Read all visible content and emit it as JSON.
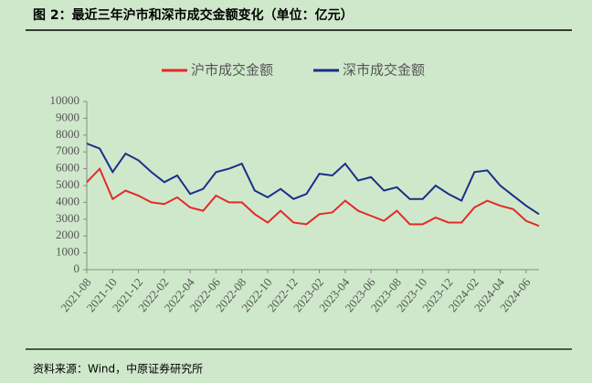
{
  "chart_data": {
    "type": "line",
    "title": "图 2：最近三年沪市和深市成交金额变化（单位：亿元）",
    "source": "资料来源：Wind，中原证券研究所",
    "categories": [
      "2021-08",
      null,
      "2021-10",
      null,
      "2021-12",
      null,
      "2022-02",
      null,
      "2022-04",
      null,
      "2022-06",
      null,
      "2022-08",
      null,
      "2022-10",
      null,
      "2022-12",
      null,
      "2023-02",
      null,
      "2023-04",
      null,
      "2023-06",
      null,
      "2023-08",
      null,
      "2023-10",
      null,
      "2023-12",
      null,
      "2024-02",
      null,
      "2024-04",
      null,
      "2024-06",
      null
    ],
    "series": [
      {
        "name": "沪市成交金额",
        "color": "#e32a2a",
        "values": [
          5200,
          6000,
          4200,
          4700,
          4400,
          4000,
          3900,
          4300,
          3700,
          3500,
          4400,
          4000,
          4000,
          3300,
          2800,
          3500,
          2800,
          2700,
          3300,
          3400,
          4100,
          3500,
          3200,
          2900,
          3500,
          2700,
          2700,
          3100,
          2800,
          2800,
          3700,
          4100,
          3800,
          3600,
          2900,
          2600
        ]
      },
      {
        "name": "深市成交金额",
        "color": "#1b2f8a",
        "values": [
          7500,
          7200,
          5800,
          6900,
          6500,
          5800,
          5200,
          5600,
          4500,
          4800,
          5800,
          6000,
          6300,
          4700,
          4300,
          4800,
          4200,
          4500,
          5700,
          5600,
          6300,
          5300,
          5500,
          4700,
          4900,
          4200,
          4200,
          5000,
          4500,
          4100,
          5800,
          5900,
          5000,
          4400,
          3800,
          3300
        ]
      }
    ],
    "ylim": [
      0,
      10000
    ],
    "yticks": [
      0,
      1000,
      2000,
      3000,
      4000,
      5000,
      6000,
      7000,
      8000,
      9000,
      10000
    ]
  }
}
